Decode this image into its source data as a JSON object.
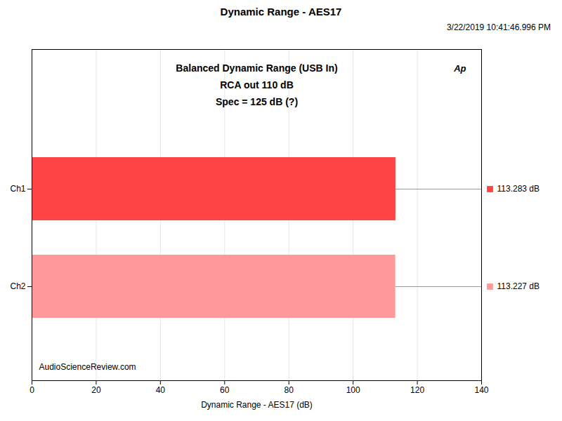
{
  "chart_data": {
    "type": "bar",
    "orientation": "horizontal",
    "title": "Dynamic Range - AES17",
    "subtitle": "3/22/2019 10:41:46.996 PM",
    "xlabel": "Dynamic Range - AES17 (dB)",
    "categories": [
      "Ch2",
      "Ch1"
    ],
    "values": [
      113.227,
      113.283
    ],
    "value_labels": [
      "113.227 dB",
      "113.283 dB"
    ],
    "data_labels": true,
    "colors": [
      "#FF9999",
      "#FF4444"
    ],
    "xlim": [
      0,
      140
    ],
    "xticks": [
      0,
      20,
      40,
      60,
      80,
      100,
      120,
      140
    ],
    "grid": true,
    "annotations": [
      "Balanced Dynamic Range (USB In)",
      "RCA out 110 dB",
      "Spec = 125 dB (?)",
      "Ap",
      "AudioScienceReview.com"
    ]
  }
}
